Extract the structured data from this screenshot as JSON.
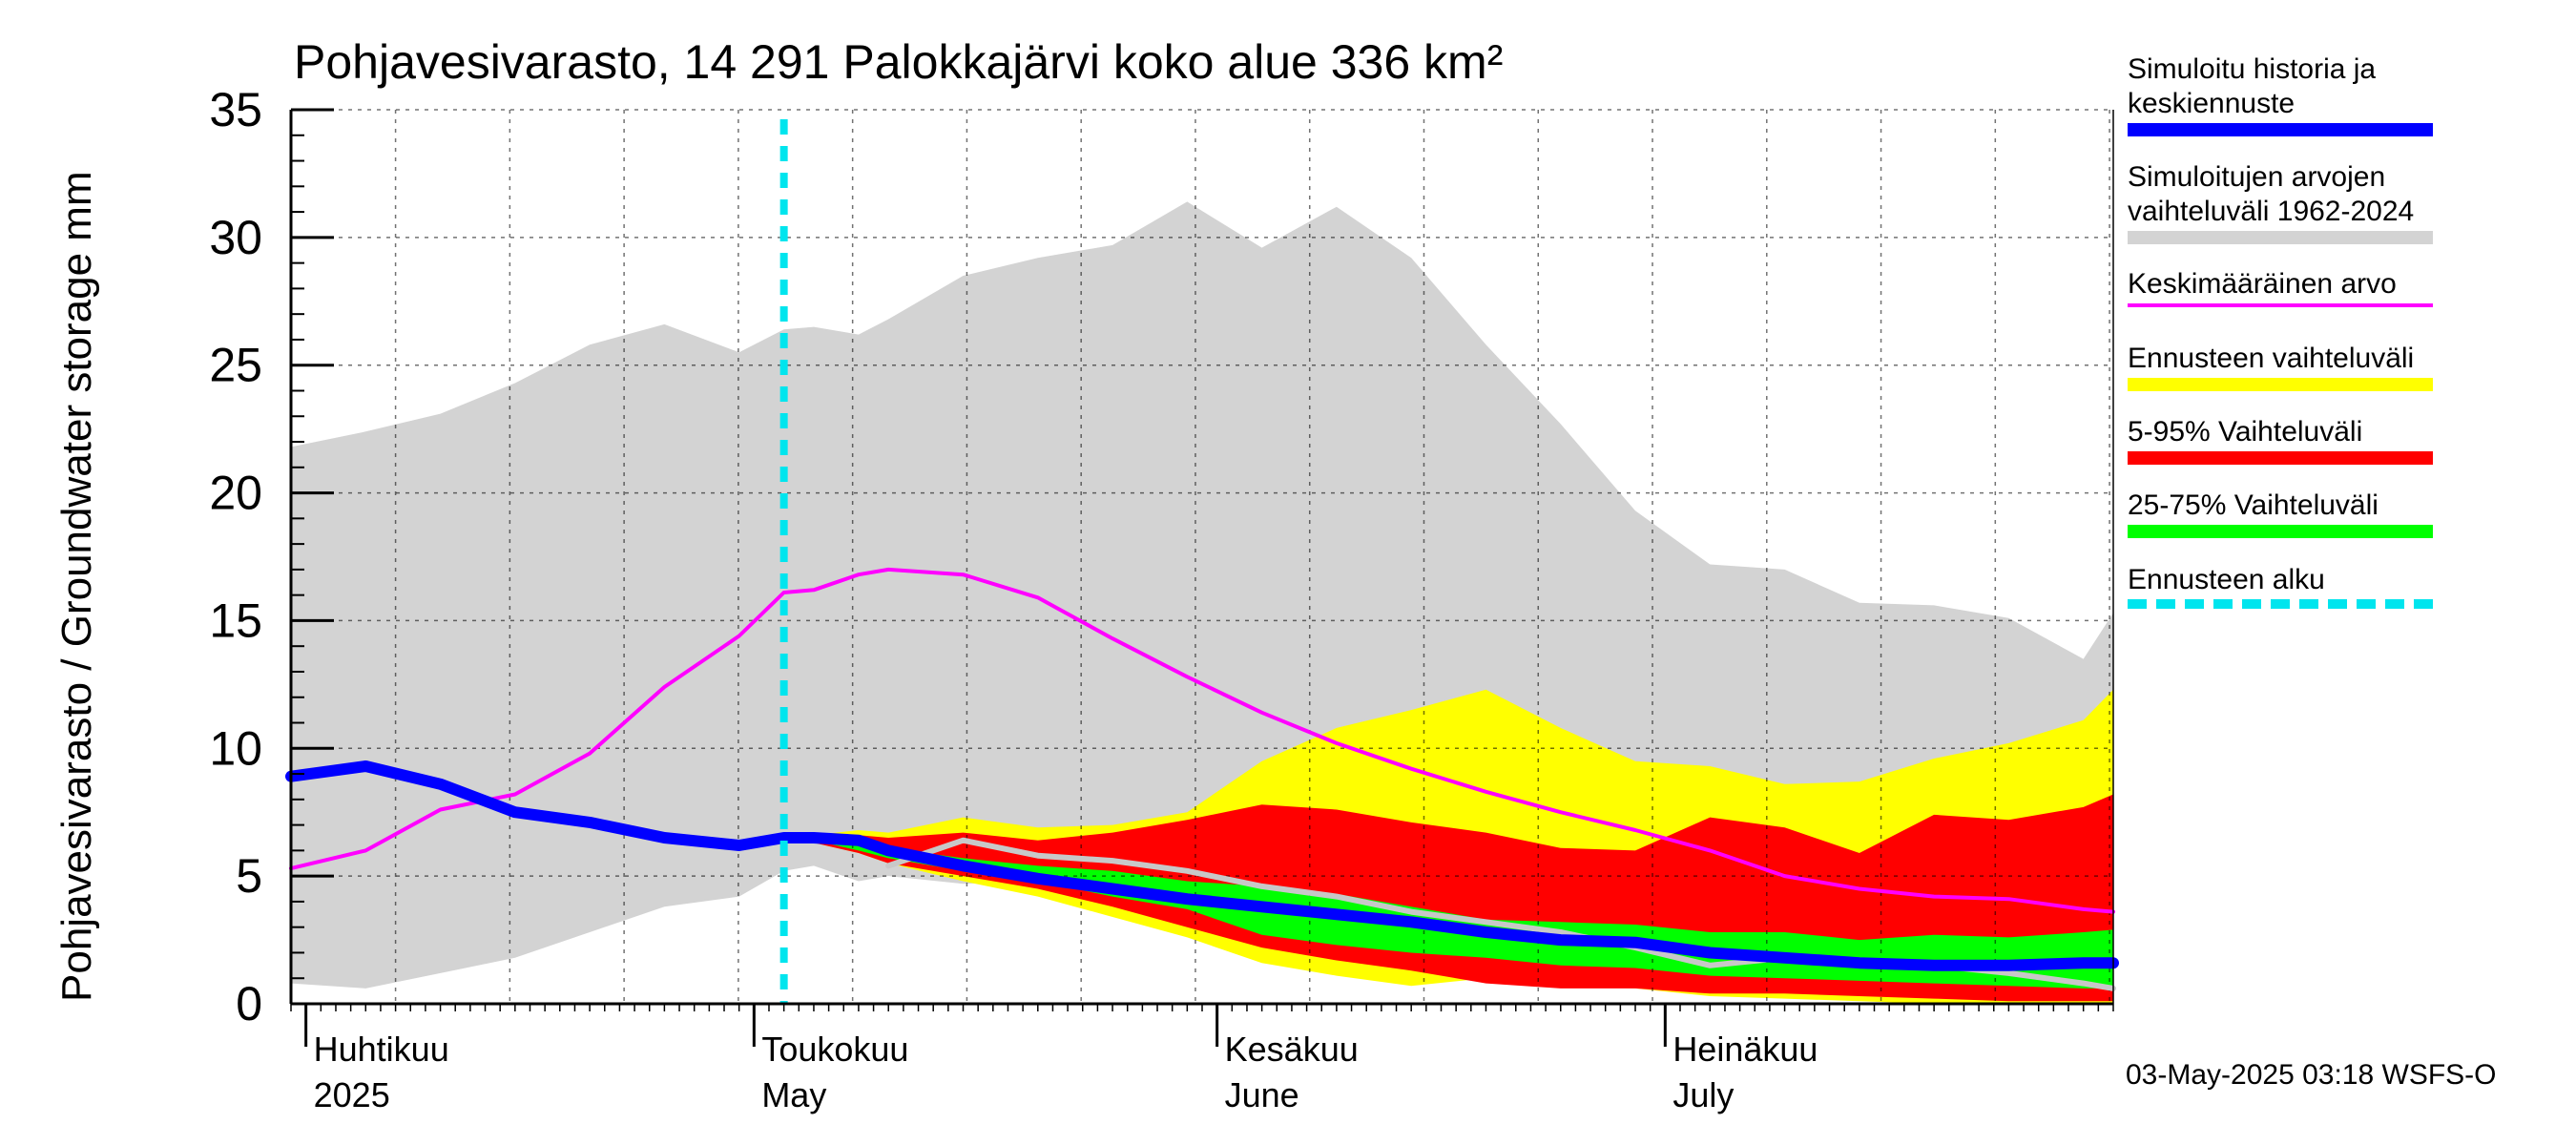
{
  "chart_data": {
    "type": "area",
    "title": "Pohjavesivarasto, 14 291 Palokkajärvi koko alue 336 km²",
    "ylabel": "Pohjavesivarasto / Groundwater storage   mm",
    "ylim": [
      0,
      35
    ],
    "yticks": [
      0,
      5,
      10,
      15,
      20,
      25,
      30,
      35
    ],
    "xrange": [
      "2025-03-31",
      "2025-07-31"
    ],
    "forecast_start": "2025-05-03",
    "month_labels": [
      {
        "date": "2025-04-01",
        "fi": "Huhtikuu",
        "en": "2025"
      },
      {
        "date": "2025-05-01",
        "fi": "Toukokuu",
        "en": "May"
      },
      {
        "date": "2025-06-01",
        "fi": "Kesäkuu",
        "en": "June"
      },
      {
        "date": "2025-07-01",
        "fi": "Heinäkuu",
        "en": "July"
      }
    ],
    "x": [
      "2025-03-31",
      "2025-04-05",
      "2025-04-10",
      "2025-04-15",
      "2025-04-20",
      "2025-04-25",
      "2025-04-30",
      "2025-05-03",
      "2025-05-05",
      "2025-05-08",
      "2025-05-10",
      "2025-05-15",
      "2025-05-20",
      "2025-05-25",
      "2025-05-30",
      "2025-06-04",
      "2025-06-09",
      "2025-06-14",
      "2025-06-19",
      "2025-06-24",
      "2025-06-29",
      "2025-07-04",
      "2025-07-09",
      "2025-07-14",
      "2025-07-19",
      "2025-07-24",
      "2025-07-29",
      "2025-07-31"
    ],
    "series": [
      {
        "name": "Simuloitujen arvojen vaihteluväli 1962-2024",
        "role": "band",
        "color": "#d3d3d3",
        "lower": [
          0.8,
          0.6,
          1.2,
          1.8,
          2.8,
          3.8,
          4.2,
          5.2,
          5.4,
          4.8,
          5.0,
          4.7,
          4.8,
          4.5,
          4.3,
          4.2,
          3.8,
          3.8,
          3.6,
          3.4,
          3.0,
          2.8,
          2.8,
          2.8,
          2.7,
          2.7,
          2.6,
          2.6
        ],
        "upper": [
          21.8,
          22.4,
          23.1,
          24.3,
          25.8,
          26.6,
          25.5,
          26.4,
          26.5,
          26.2,
          26.8,
          28.5,
          29.2,
          29.7,
          31.4,
          29.6,
          31.2,
          29.2,
          25.8,
          22.7,
          19.3,
          17.2,
          17.0,
          15.7,
          15.6,
          15.1,
          13.5,
          15.3
        ]
      },
      {
        "name": "Ennusteen vaihteluväli",
        "role": "band",
        "color": "#ffff00",
        "lower": [
          null,
          null,
          null,
          null,
          null,
          null,
          null,
          6.5,
          6.3,
          5.9,
          5.5,
          4.8,
          4.2,
          3.4,
          2.6,
          1.6,
          1.1,
          0.7,
          1.0,
          0.7,
          0.6,
          0.3,
          0.2,
          0.1,
          0.0,
          0.0,
          0.0,
          0.0
        ],
        "upper": [
          null,
          null,
          null,
          null,
          null,
          null,
          null,
          6.5,
          6.6,
          6.8,
          6.7,
          7.3,
          6.9,
          7.0,
          7.5,
          9.5,
          10.8,
          11.5,
          12.3,
          10.8,
          9.5,
          9.3,
          8.6,
          8.7,
          9.6,
          10.2,
          11.1,
          12.3
        ]
      },
      {
        "name": "5-95% Vaihteluväli",
        "role": "band",
        "color": "#ff0000",
        "lower": [
          null,
          null,
          null,
          null,
          null,
          null,
          null,
          6.5,
          6.3,
          5.9,
          5.5,
          5.0,
          4.5,
          3.8,
          3.0,
          2.2,
          1.7,
          1.3,
          0.8,
          0.6,
          0.6,
          0.4,
          0.4,
          0.3,
          0.2,
          0.1,
          0.1,
          0.1
        ],
        "upper": [
          null,
          null,
          null,
          null,
          null,
          null,
          null,
          6.5,
          6.5,
          6.6,
          6.5,
          6.7,
          6.4,
          6.7,
          7.2,
          7.8,
          7.6,
          7.1,
          6.7,
          6.1,
          6.0,
          7.3,
          6.9,
          5.9,
          7.4,
          7.2,
          7.7,
          8.2
        ]
      },
      {
        "name": "25-75% Vaihteluväli",
        "role": "band",
        "color": "#00ff00",
        "lower": [
          null,
          null,
          null,
          null,
          null,
          null,
          null,
          6.5,
          6.4,
          6.0,
          5.7,
          5.2,
          4.8,
          4.2,
          3.7,
          2.7,
          2.3,
          2.0,
          1.8,
          1.5,
          1.4,
          1.1,
          1.0,
          0.9,
          0.8,
          0.7,
          0.6,
          0.6
        ],
        "upper": [
          null,
          null,
          null,
          null,
          null,
          null,
          null,
          6.5,
          6.5,
          6.4,
          6.1,
          5.7,
          5.4,
          5.2,
          4.8,
          4.6,
          4.3,
          3.8,
          3.3,
          3.2,
          3.1,
          2.8,
          2.8,
          2.5,
          2.7,
          2.6,
          2.8,
          2.9
        ]
      },
      {
        "name": "Keskimääräinen arvo",
        "role": "line",
        "color": "#ff00ff",
        "width": 4,
        "values": [
          5.3,
          6.0,
          7.6,
          8.2,
          9.8,
          12.4,
          14.4,
          16.1,
          16.2,
          16.8,
          17.0,
          16.8,
          15.9,
          14.3,
          12.8,
          11.4,
          10.2,
          9.2,
          8.3,
          7.5,
          6.8,
          6.0,
          5.0,
          4.5,
          4.2,
          4.1,
          3.7,
          3.6
        ]
      },
      {
        "name": "",
        "role": "line",
        "color": "#c8c8c8",
        "width": 6,
        "values": [
          null,
          null,
          null,
          null,
          null,
          null,
          null,
          null,
          null,
          null,
          5.4,
          6.4,
          5.8,
          5.6,
          5.2,
          4.6,
          4.2,
          3.6,
          3.2,
          2.8,
          2.2,
          1.5,
          1.8,
          1.6,
          1.5,
          1.2,
          0.8,
          0.6
        ]
      },
      {
        "name": "Simuloitu historia ja keskiennuste",
        "role": "line",
        "color": "#0000ff",
        "width": 12,
        "values": [
          8.9,
          9.3,
          8.6,
          7.5,
          7.1,
          6.5,
          6.2,
          6.5,
          6.5,
          6.4,
          6.0,
          5.4,
          4.9,
          4.5,
          4.1,
          3.8,
          3.5,
          3.2,
          2.8,
          2.5,
          2.4,
          2.0,
          1.8,
          1.6,
          1.5,
          1.5,
          1.6,
          1.6
        ]
      },
      {
        "name": "Ennusteen alku",
        "role": "vline",
        "color": "#00e5ee",
        "width": 8
      }
    ]
  },
  "legend": [
    {
      "label": "Simuloitu historia ja\nkeskiennuste",
      "color": "#0000ff",
      "style": "solid"
    },
    {
      "label": "Simuloitujen arvojen\nvaihteluväli 1962-2024",
      "color": "#d3d3d3",
      "style": "solid"
    },
    {
      "label": "Keskimääräinen arvo",
      "color": "#ff00ff",
      "style": "thin"
    },
    {
      "label": "Ennusteen vaihteluväli",
      "color": "#ffff00",
      "style": "solid"
    },
    {
      "label": "5-95% Vaihteluväli",
      "color": "#ff0000",
      "style": "solid"
    },
    {
      "label": "25-75% Vaihteluväli",
      "color": "#00ff00",
      "style": "solid"
    },
    {
      "label": "Ennusteen alku",
      "color": "#00e5ee",
      "style": "dashed"
    }
  ],
  "footer": "03-May-2025 03:18 WSFS-O"
}
